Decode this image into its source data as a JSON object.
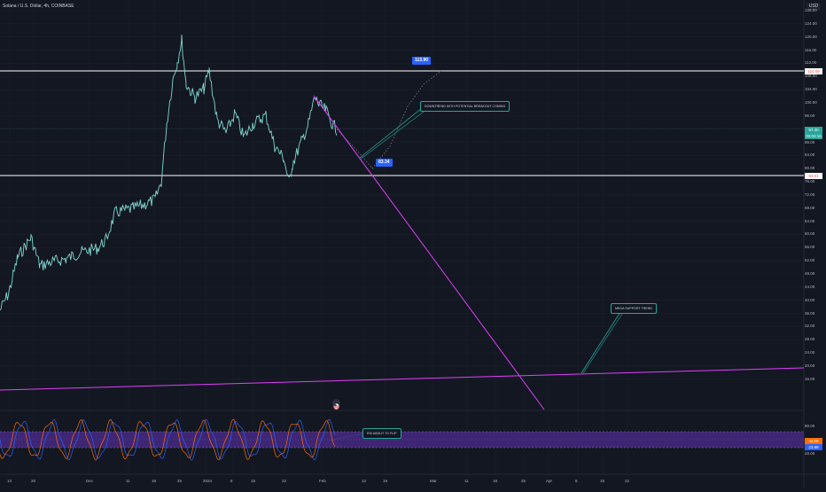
{
  "header": {
    "symbol": "Solana / U.S. Dollar, 4h, COINBASE",
    "currency_button": "USD"
  },
  "price_axis": {
    "ticks": [
      "128.00",
      "124.00",
      "120.00",
      "116.00",
      "112.00",
      "108.00",
      "104.00",
      "100.00",
      "96.00",
      "92.00",
      "88.00",
      "84.00",
      "80.00",
      "76.00",
      "72.00",
      "68.00",
      "64.00",
      "60.00",
      "56.00",
      "52.00",
      "48.00",
      "44.00",
      "40.00",
      "36.00",
      "32.00",
      "28.00",
      "24.00",
      "20.00",
      "16.00"
    ],
    "level_tags": [
      {
        "text": "114.09",
        "color": "#ef5350",
        "bg": "#ffffff"
      },
      {
        "text": "97.30",
        "color": "#ffffff",
        "bg": "#26a69a"
      },
      {
        "text": "03:03:16",
        "color": "#ffffff",
        "bg": "#26a69a"
      },
      {
        "text": "83.01",
        "color": "#ef5350",
        "bg": "#ffffff"
      }
    ]
  },
  "oscillator_axis": {
    "ticks": [
      "80.00",
      "20.00"
    ],
    "tags": [
      {
        "text": "42.09",
        "color": "#ffffff",
        "bg": "#ff6d00"
      },
      {
        "text": "23.98",
        "color": "#ffffff",
        "bg": "#2962ff"
      }
    ]
  },
  "time_axis": [
    "13",
    "20",
    "Dec",
    "11",
    "18",
    "25",
    "2024",
    "8",
    "15",
    "22",
    "Feb",
    "12",
    "19",
    "Mar",
    "11",
    "18",
    "25",
    "Apr",
    "8",
    "15",
    "22"
  ],
  "annotations": {
    "callout_high": "113.90",
    "callout_low": "83.34",
    "note_downtrend": "DOWNTREND WITH POTENTIAL BREAKOUT COMING",
    "note_support": "MEGA SUPPORT TREND",
    "note_rsi": "RSI ABOUT TO FLIP"
  },
  "colors": {
    "background": "#131722",
    "price_line": "#7fd6d0",
    "trendline": "#e040fb",
    "level_line": "#ffffff",
    "rsi_band": "#4a2a8a",
    "rsi_k": "#2962ff",
    "rsi_d": "#ff6d00"
  },
  "flag_icon": "us-flag-icon"
}
